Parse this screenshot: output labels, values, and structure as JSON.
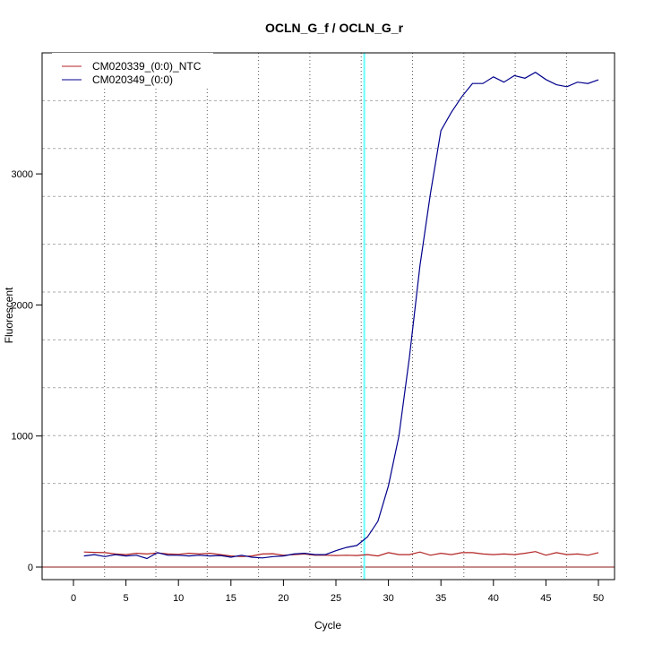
{
  "chart_data": {
    "type": "line",
    "title": "OCLN_G_f / OCLN_G_r",
    "xlabel": "Cycle",
    "ylabel": "Fluorescent",
    "xlim": [
      -3,
      52.5
    ],
    "ylim": [
      -90,
      3920
    ],
    "xticks": [
      0,
      5,
      10,
      15,
      20,
      25,
      30,
      35,
      40,
      45,
      50
    ],
    "yticks": [
      0,
      1000,
      2000,
      3000
    ],
    "grid": true,
    "legend_position": "top-left",
    "threshold_cycle": 27.7,
    "threshold_color": "#66ffff",
    "baseline_value": 0,
    "baseline_color": "#8b1a1a",
    "x": [
      1,
      2,
      3,
      4,
      5,
      6,
      7,
      8,
      9,
      10,
      11,
      12,
      13,
      14,
      15,
      16,
      17,
      18,
      19,
      20,
      21,
      22,
      23,
      24,
      25,
      26,
      27,
      28,
      29,
      30,
      31,
      32,
      33,
      34,
      35,
      36,
      37,
      38,
      39,
      40,
      41,
      42,
      43,
      44,
      45,
      46,
      47,
      48,
      49,
      50
    ],
    "series": [
      {
        "name": "CM020339_(0:0)_NTC",
        "color": "#b22222",
        "values": [
          115,
          112,
          110,
          100,
          95,
          105,
          100,
          108,
          100,
          97,
          105,
          100,
          105,
          95,
          85,
          80,
          85,
          100,
          102,
          90,
          95,
          100,
          90,
          90,
          88,
          90,
          88,
          95,
          85,
          110,
          95,
          95,
          115,
          90,
          105,
          95,
          110,
          110,
          100,
          95,
          100,
          95,
          105,
          118,
          90,
          110,
          95,
          100,
          90,
          110
        ]
      },
      {
        "name": "CM020349_(0:0)",
        "color": "#00008b",
        "values": [
          85,
          95,
          80,
          95,
          85,
          90,
          65,
          110,
          90,
          90,
          85,
          90,
          85,
          88,
          75,
          90,
          75,
          70,
          80,
          85,
          100,
          105,
          95,
          95,
          125,
          150,
          165,
          230,
          350,
          620,
          1000,
          1600,
          2300,
          2850,
          3330,
          3470,
          3590,
          3690,
          3690,
          3740,
          3700,
          3750,
          3730,
          3775,
          3720,
          3680,
          3665,
          3700,
          3690,
          3718
        ]
      }
    ]
  }
}
